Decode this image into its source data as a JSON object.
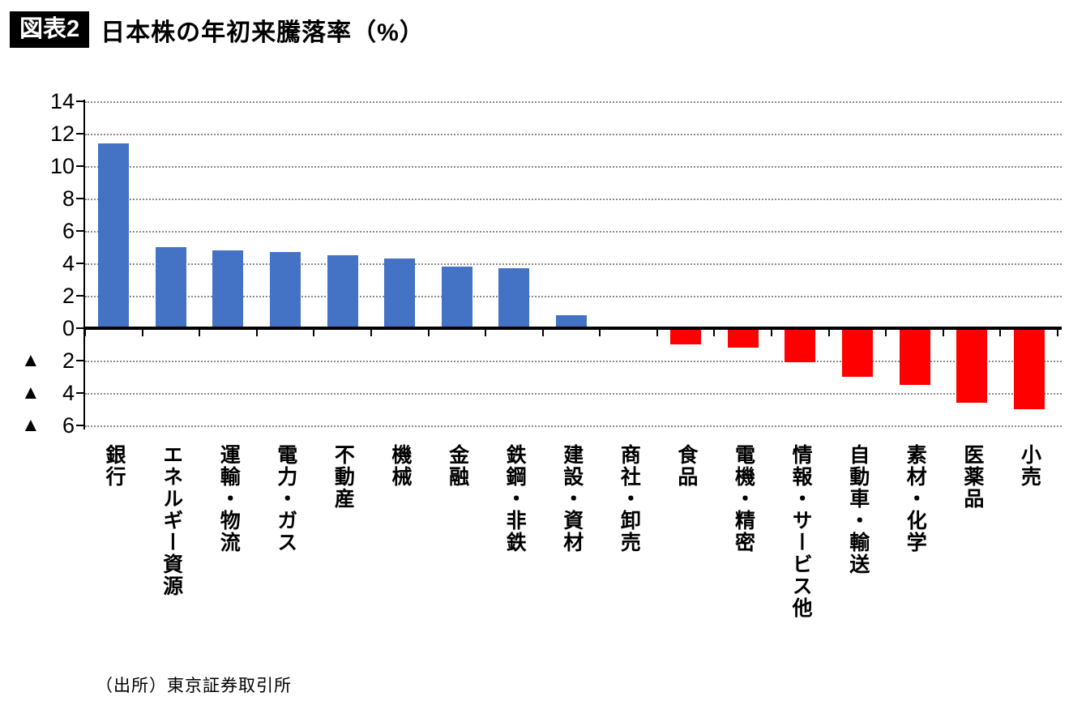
{
  "header": {
    "badge": "図表2",
    "title": "日本株の年初来騰落率（%）"
  },
  "source_note": "（出所）東京証券取引所",
  "chart_data": {
    "type": "bar",
    "title": "日本株の年初来騰落率（%）",
    "categories": [
      "銀行",
      "エネルギー資源",
      "運輸・物流",
      "電力・ガス",
      "不動産",
      "機械",
      "金融",
      "鉄鋼・非鉄",
      "建設・資材",
      "商社・卸売",
      "食品",
      "電機・精密",
      "情報・サービス他",
      "自動車・輸送",
      "素材・化学",
      "医薬品",
      "小売"
    ],
    "values": [
      11.4,
      5.0,
      4.8,
      4.7,
      4.5,
      4.3,
      3.8,
      3.7,
      0.8,
      0.0,
      -1.0,
      -1.2,
      -2.1,
      -3.0,
      -3.5,
      -4.6,
      -5.0
    ],
    "ylim": [
      -6,
      14
    ],
    "yticks": [
      14,
      12,
      10,
      8,
      6,
      4,
      2,
      0,
      -2,
      -4,
      -6
    ],
    "negative_label_prefix": "▲",
    "grid": "horizontal-dotted",
    "legend": "none",
    "positive_color": "#4472C4",
    "negative_color": "#FF0000",
    "xlabel": "",
    "ylabel": ""
  }
}
